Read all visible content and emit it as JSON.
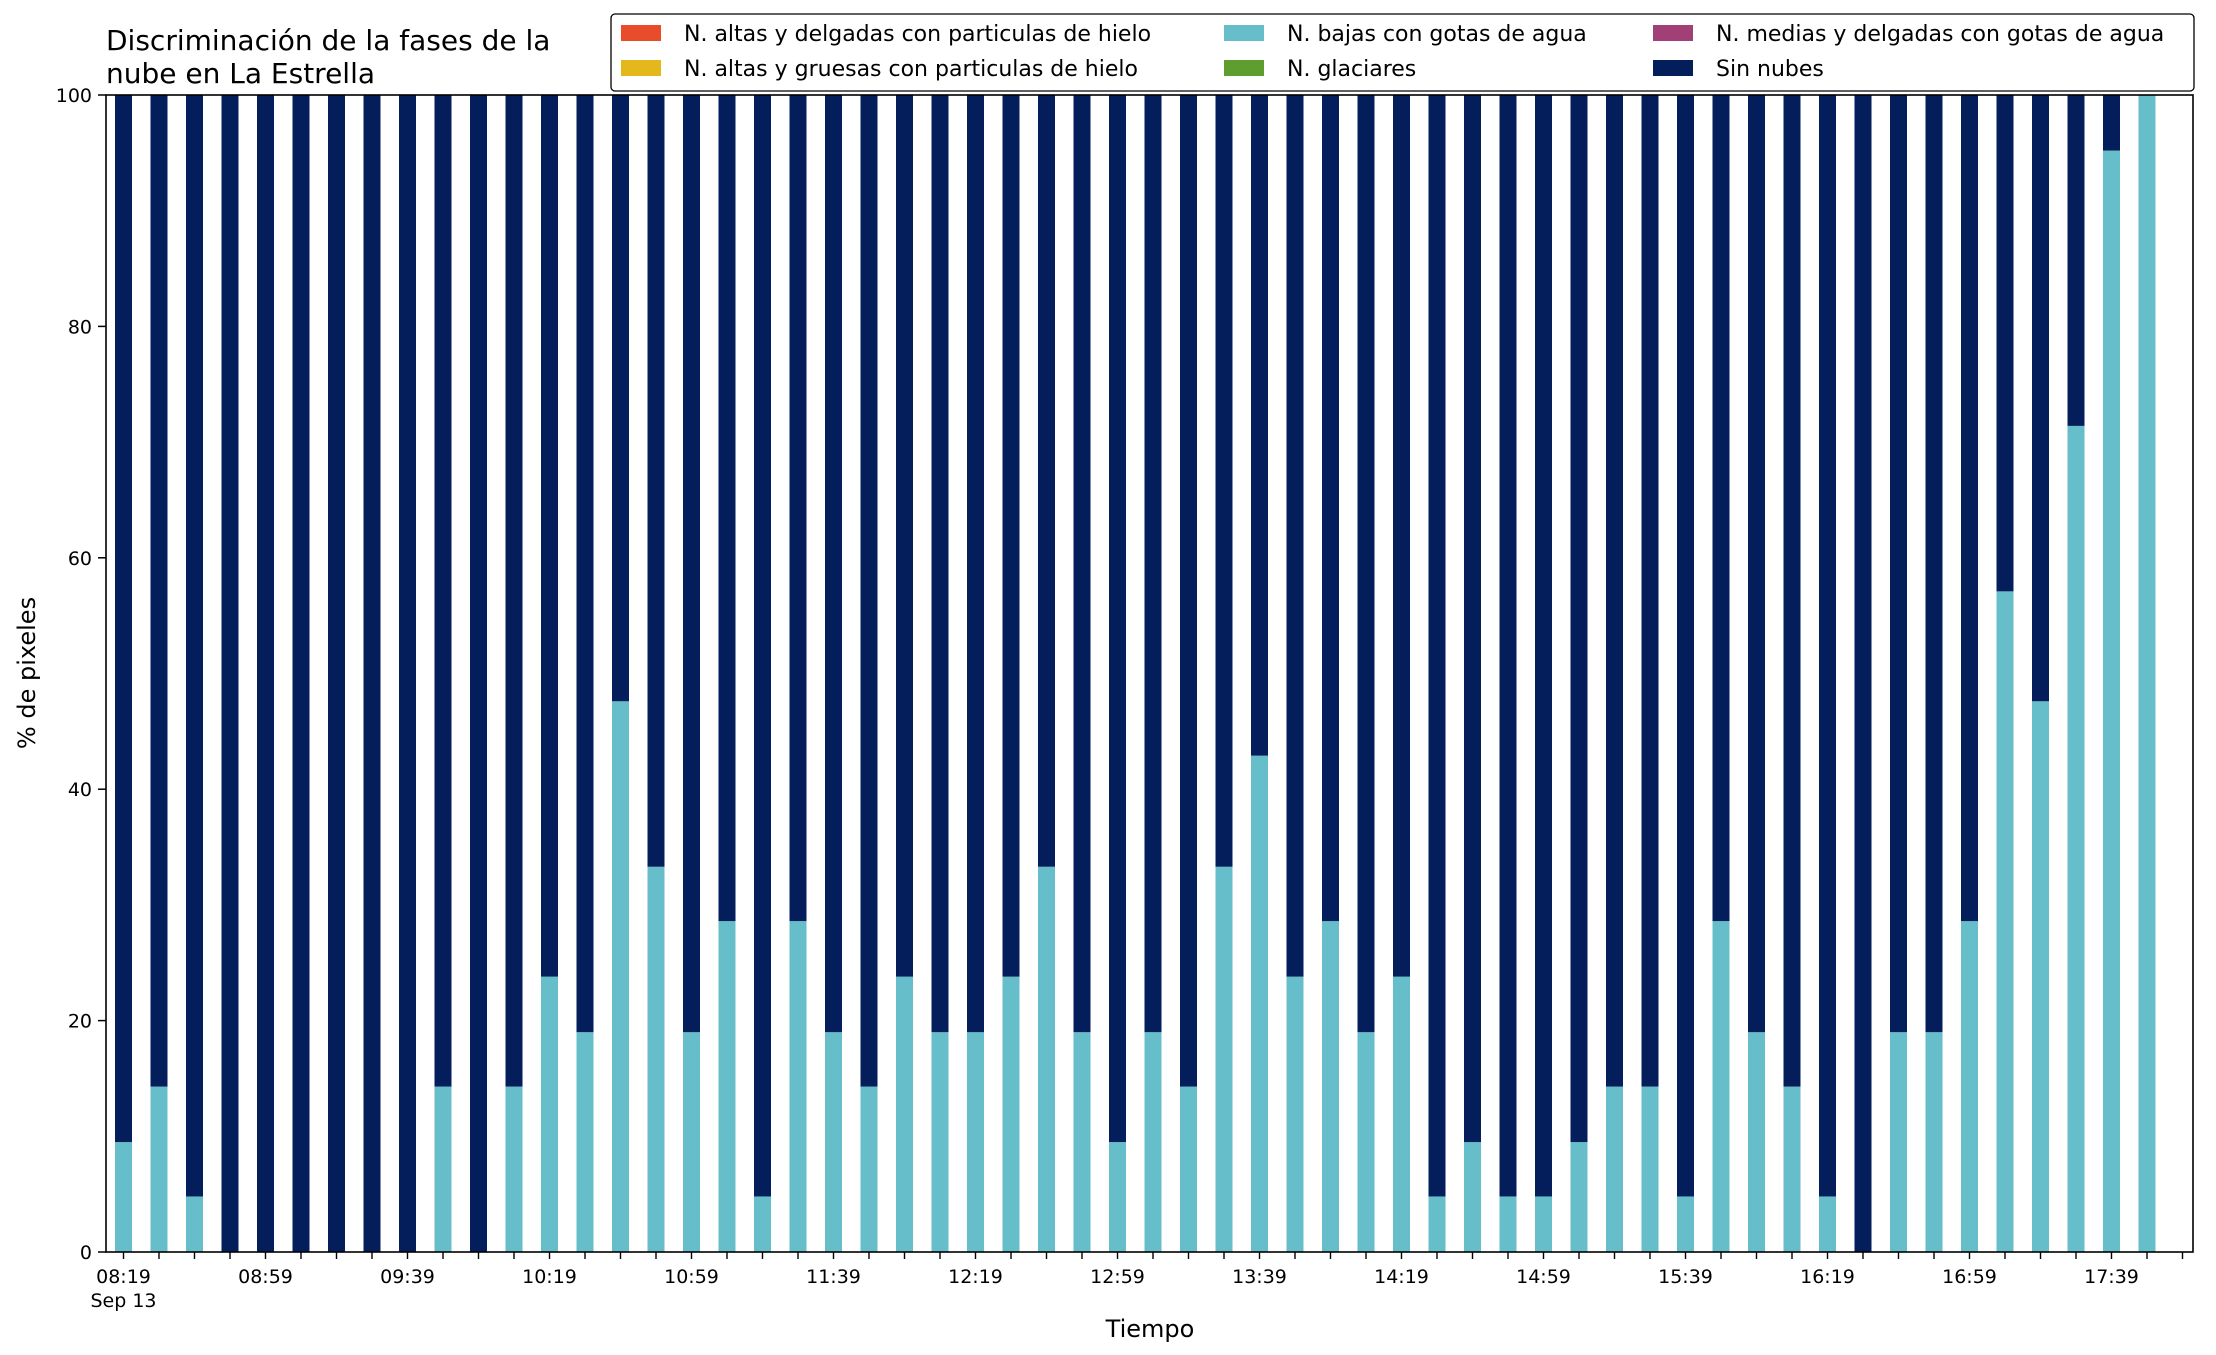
{
  "chart_data": {
    "type": "bar",
    "stacked": true,
    "title": "Discriminación de la fases de la nube en La Estrella",
    "title_lines": [
      "Discriminación de la fases de la",
      "nube en La Estrella"
    ],
    "xlabel": "Tiempo",
    "ylabel": "% de pixeles",
    "ylim": [
      0,
      100
    ],
    "yticks": [
      "0",
      "20",
      "40",
      "60",
      "80",
      "100"
    ],
    "x_date_label": "Sep 13",
    "xticks_labeled": [
      "08:19",
      "08:59",
      "09:39",
      "10:19",
      "10:59",
      "11:39",
      "12:19",
      "12:59",
      "13:39",
      "14:19",
      "14:59",
      "15:39",
      "16:19",
      "16:59",
      "17:39"
    ],
    "categories": [
      "08:19",
      "08:29",
      "08:39",
      "08:49",
      "08:59",
      "09:09",
      "09:19",
      "09:29",
      "09:39",
      "09:49",
      "09:59",
      "10:09",
      "10:19",
      "10:29",
      "10:39",
      "10:49",
      "10:59",
      "11:09",
      "11:19",
      "11:29",
      "11:39",
      "11:49",
      "11:59",
      "12:09",
      "12:19",
      "12:29",
      "12:39",
      "12:49",
      "12:59",
      "13:09",
      "13:19",
      "13:29",
      "13:39",
      "13:49",
      "13:59",
      "14:09",
      "14:19",
      "14:29",
      "14:39",
      "14:49",
      "14:59",
      "15:09",
      "15:19",
      "15:29",
      "15:39",
      "15:49",
      "15:59",
      "16:09",
      "16:19",
      "16:29",
      "16:39",
      "16:49",
      "16:59",
      "17:09",
      "17:19",
      "17:29",
      "17:39",
      "17:49"
    ],
    "grid": false,
    "legend_position": "top-right",
    "legend_columns": 3,
    "series": [
      {
        "name": "N. altas y delgadas con particulas de hielo",
        "color": "#e84c2a",
        "values": [
          0,
          0,
          0,
          0,
          0,
          0,
          0,
          0,
          0,
          0,
          0,
          0,
          0,
          0,
          0,
          0,
          0,
          0,
          0,
          0,
          0,
          0,
          0,
          0,
          0,
          0,
          0,
          0,
          0,
          0,
          0,
          0,
          0,
          0,
          0,
          0,
          0,
          0,
          0,
          0,
          0,
          0,
          0,
          0,
          0,
          0,
          0,
          0,
          0,
          0,
          0,
          0,
          0,
          0,
          0,
          0,
          0,
          0
        ]
      },
      {
        "name": "N. altas y gruesas con particulas de hielo",
        "color": "#e4b81d",
        "values": [
          0,
          0,
          0,
          0,
          0,
          0,
          0,
          0,
          0,
          0,
          0,
          0,
          0,
          0,
          0,
          0,
          0,
          0,
          0,
          0,
          0,
          0,
          0,
          0,
          0,
          0,
          0,
          0,
          0,
          0,
          0,
          0,
          0,
          0,
          0,
          0,
          0,
          0,
          0,
          0,
          0,
          0,
          0,
          0,
          0,
          0,
          0,
          0,
          0,
          0,
          0,
          0,
          0,
          0,
          0,
          0,
          0,
          0
        ]
      },
      {
        "name": "N. bajas con gotas de agua",
        "color": "#65bec9",
        "values": [
          9.5,
          14.3,
          4.8,
          0,
          0,
          0,
          0,
          0,
          0,
          14.3,
          0,
          14.3,
          23.8,
          19.0,
          47.6,
          33.3,
          19.0,
          28.6,
          4.8,
          28.6,
          19.0,
          14.3,
          23.8,
          19.0,
          19.0,
          23.8,
          33.3,
          19.0,
          9.5,
          19.0,
          14.3,
          33.3,
          42.9,
          23.8,
          28.6,
          19.0,
          23.8,
          4.8,
          9.5,
          4.8,
          4.8,
          9.5,
          14.3,
          14.3,
          4.8,
          28.6,
          19.0,
          14.3,
          4.8,
          0,
          19.0,
          19.0,
          28.6,
          57.1,
          47.6,
          71.4,
          95.2,
          100
        ]
      },
      {
        "name": "N. glaciares",
        "color": "#5e9e2f",
        "values": [
          0,
          0,
          0,
          0,
          0,
          0,
          0,
          0,
          0,
          0,
          0,
          0,
          0,
          0,
          0,
          0,
          0,
          0,
          0,
          0,
          0,
          0,
          0,
          0,
          0,
          0,
          0,
          0,
          0,
          0,
          0,
          0,
          0,
          0,
          0,
          0,
          0,
          0,
          0,
          0,
          0,
          0,
          0,
          0,
          0,
          0,
          0,
          0,
          0,
          0,
          0,
          0,
          0,
          0,
          0,
          0,
          0,
          0
        ]
      },
      {
        "name": "N. medias y delgadas con gotas de agua",
        "color": "#a23f76",
        "values": [
          0,
          0,
          0,
          0,
          0,
          0,
          0,
          0,
          0,
          0,
          0,
          0,
          0,
          0,
          0,
          0,
          0,
          0,
          0,
          0,
          0,
          0,
          0,
          0,
          0,
          0,
          0,
          0,
          0,
          0,
          0,
          0,
          0,
          0,
          0,
          0,
          0,
          0,
          0,
          0,
          0,
          0,
          0,
          0,
          0,
          0,
          0,
          0,
          0,
          0,
          0,
          0,
          0,
          0,
          0,
          0,
          0,
          0
        ]
      },
      {
        "name": "Sin nubes",
        "color": "#041e5c",
        "values": [
          90.5,
          85.7,
          95.2,
          100,
          100,
          100,
          100,
          100,
          100,
          85.7,
          100,
          85.7,
          76.2,
          81.0,
          52.4,
          66.7,
          81.0,
          71.4,
          95.2,
          71.4,
          81.0,
          85.7,
          76.2,
          81.0,
          81.0,
          76.2,
          66.7,
          81.0,
          90.5,
          81.0,
          85.7,
          66.7,
          57.1,
          76.2,
          71.4,
          81.0,
          76.2,
          95.2,
          90.5,
          95.2,
          95.2,
          90.5,
          85.7,
          85.7,
          95.2,
          71.4,
          81.0,
          85.7,
          95.2,
          100,
          81.0,
          81.0,
          71.4,
          42.9,
          52.4,
          28.6,
          4.8,
          0
        ]
      }
    ]
  }
}
